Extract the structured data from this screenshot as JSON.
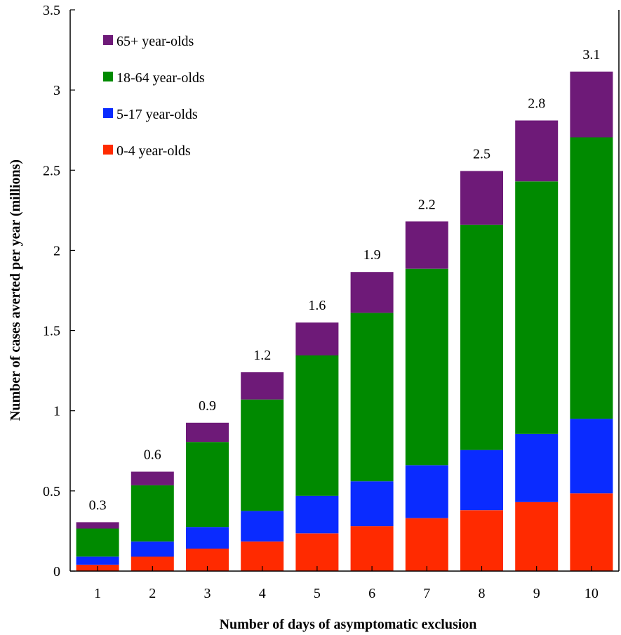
{
  "chart_data": {
    "type": "bar",
    "stacked": true,
    "xlabel": "Number of days of asymptomatic exclusion",
    "ylabel": "Number of cases averted per year (millions)",
    "ylim": [
      0,
      3.5
    ],
    "yticks": [
      "0",
      "0.5",
      "1",
      "1.5",
      "2",
      "2.5",
      "3",
      "3.5"
    ],
    "categories": [
      "1",
      "2",
      "3",
      "4",
      "5",
      "6",
      "7",
      "8",
      "9",
      "10"
    ],
    "series": [
      {
        "name": "0-4 year-olds",
        "color": "#ff2a00",
        "values": [
          0.04,
          0.09,
          0.14,
          0.185,
          0.235,
          0.28,
          0.33,
          0.38,
          0.43,
          0.485
        ]
      },
      {
        "name": "5-17 year-olds",
        "color": "#0a2bff",
        "values": [
          0.05,
          0.095,
          0.135,
          0.19,
          0.235,
          0.28,
          0.33,
          0.375,
          0.425,
          0.465
        ]
      },
      {
        "name": "18-64 year-olds",
        "color": "#008a00",
        "values": [
          0.175,
          0.35,
          0.53,
          0.695,
          0.875,
          1.05,
          1.225,
          1.405,
          1.575,
          1.755
        ]
      },
      {
        "name": "65+ year-olds",
        "color": "#6e1a78",
        "values": [
          0.04,
          0.085,
          0.12,
          0.17,
          0.205,
          0.255,
          0.295,
          0.335,
          0.38,
          0.41
        ]
      }
    ],
    "totals": [
      "0.3",
      "0.6",
      "0.9",
      "1.2",
      "1.6",
      "1.9",
      "2.2",
      "2.5",
      "2.8",
      "3.1"
    ],
    "legend_order": [
      3,
      2,
      1,
      0
    ],
    "legend_position": "top-left",
    "grid": false
  }
}
